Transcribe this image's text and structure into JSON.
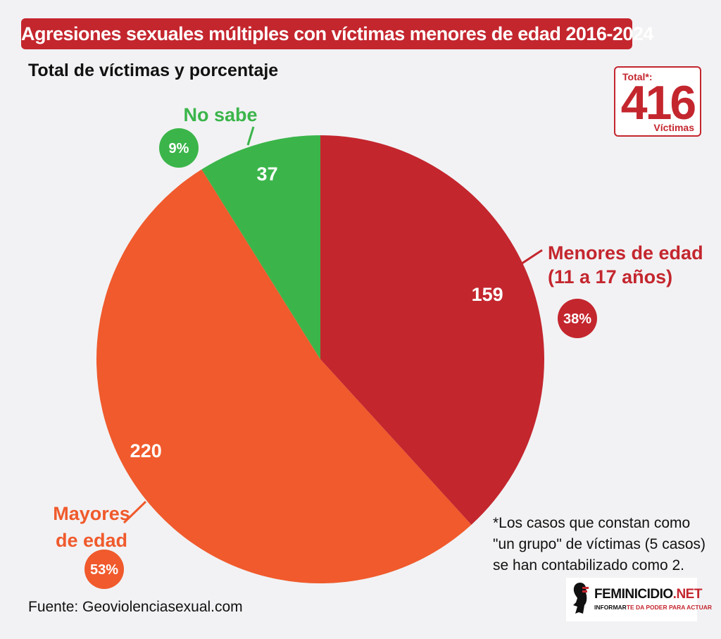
{
  "header": {
    "title": "Agresiones sexuales múltiples con víctimas menores de edad 2016-2024",
    "subtitle": "Total de víctimas y porcentaje"
  },
  "total": {
    "label": "Total*:",
    "value": "416",
    "unit": "Víctimas"
  },
  "colors": {
    "brand_red": "#c4262e",
    "menores": "#c4262e",
    "mayores": "#f05a2c",
    "no_sabe": "#3bb54a"
  },
  "chart_data": {
    "type": "pie",
    "start": "top",
    "direction": "clockwise",
    "slices": [
      {
        "name": "Menores de edad (11 a 17 años)",
        "label_lines": [
          "Menores de edad",
          "(11 a 17 años)"
        ],
        "value": 159,
        "percent": "38%",
        "color": "#c4262e"
      },
      {
        "name": "Mayores de edad",
        "label_lines": [
          "Mayores",
          "de edad"
        ],
        "value": 220,
        "percent": "53%",
        "color": "#f05a2c"
      },
      {
        "name": "No sabe",
        "label_lines": [
          "No sabe"
        ],
        "value": 37,
        "percent": "9%",
        "color": "#3bb54a"
      }
    ]
  },
  "footnote": {
    "lines": [
      "*Los casos que constan como",
      "\"un grupo\" de víctimas (5 casos)",
      "se han contabilizado como 2."
    ]
  },
  "source": "Fuente: Geoviolenciasexual.com",
  "logo": {
    "name_part1": "FEMINICIDIO",
    "name_part2": ".NET",
    "tagline_part1": "INFORMAR",
    "tagline_part2": "TE DA PODER PARA ACTUAR"
  }
}
